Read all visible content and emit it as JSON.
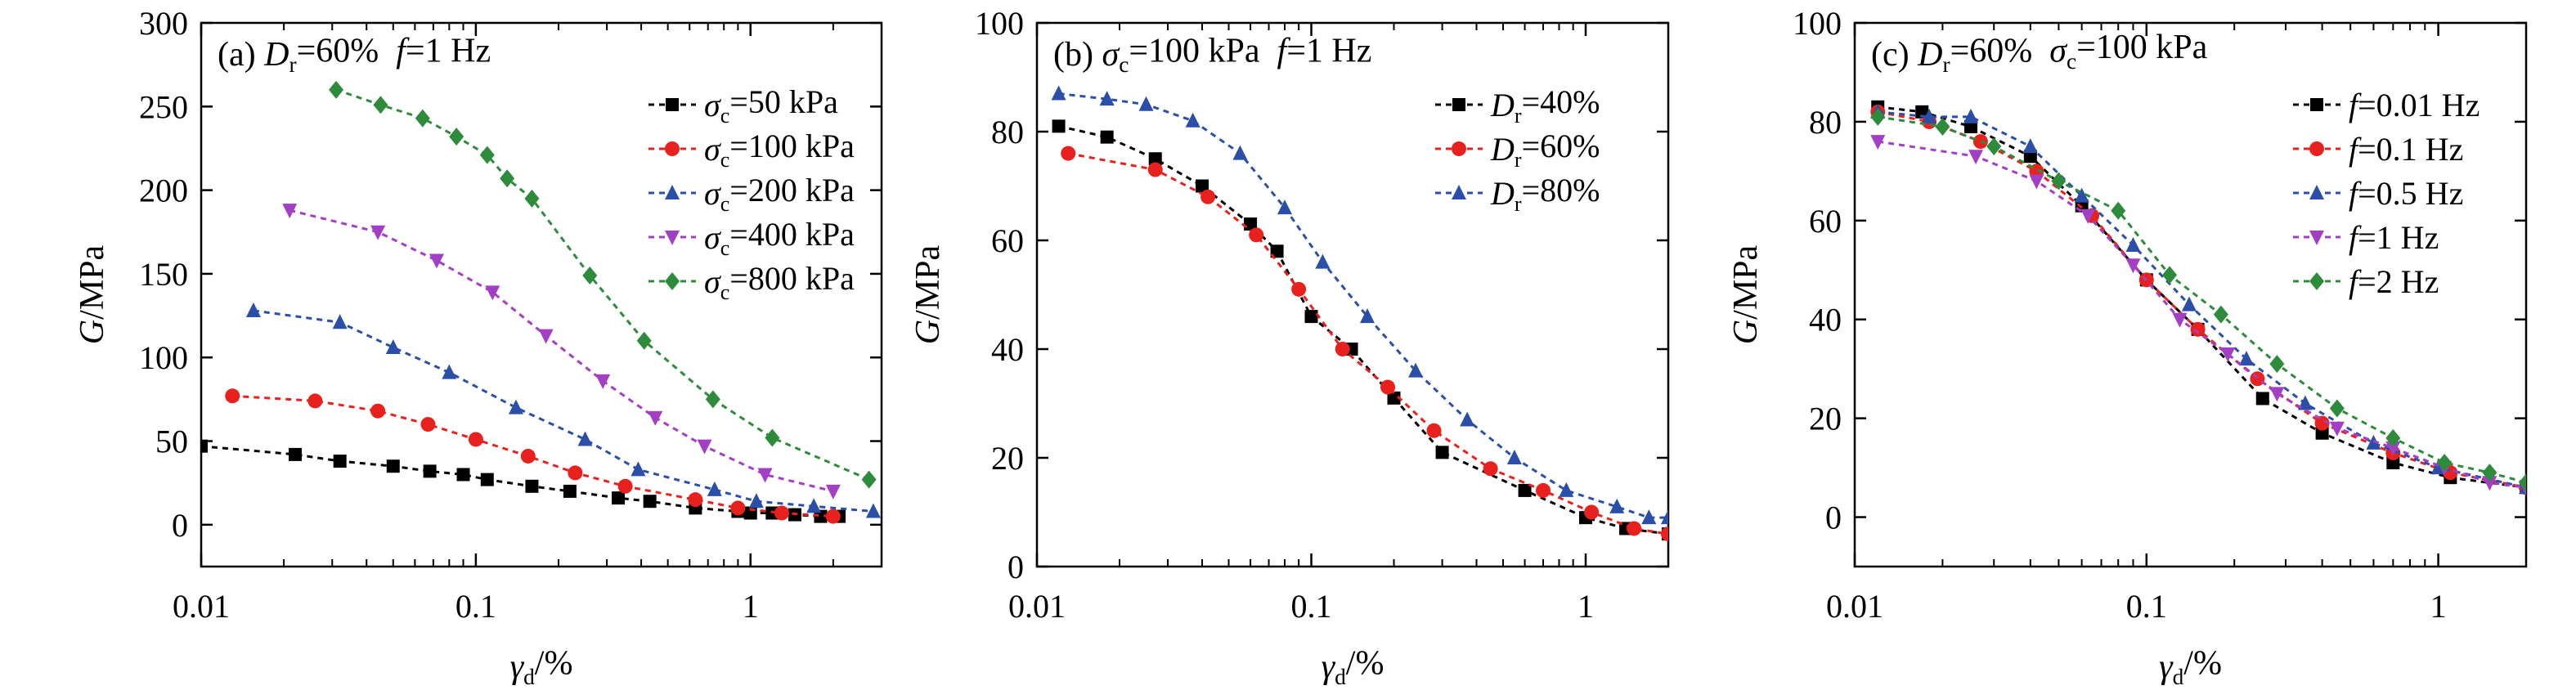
{
  "figure": {
    "panels": [
      "(a)",
      "(b)",
      "(c)"
    ]
  },
  "chart_data": [
    {
      "type": "line",
      "panel": "(a)",
      "title": "(a) Dr=60%  f=1 Hz",
      "xlabel": "γd/%",
      "ylabel": "G/MPa",
      "xscale": "log",
      "xlim": [
        0.01,
        3
      ],
      "ylim": [
        -25,
        300
      ],
      "xticks": [
        "0.01",
        "0.1",
        "1"
      ],
      "yticks": [
        "0",
        "50",
        "100",
        "150",
        "200",
        "250",
        "300"
      ],
      "legend_position": "top-right",
      "series": [
        {
          "name": "σc=50 kPa",
          "color": "#000000",
          "marker": "square",
          "x": [
            0.01,
            0.022,
            0.032,
            0.05,
            0.068,
            0.09,
            0.11,
            0.16,
            0.22,
            0.33,
            0.43,
            0.63,
            0.9,
            1.0,
            1.2,
            1.45,
            1.8,
            2.1
          ],
          "y": [
            47,
            42,
            38,
            35,
            32,
            30,
            27,
            23,
            20,
            16,
            14,
            10,
            8,
            7,
            7,
            6,
            5,
            5
          ]
        },
        {
          "name": "σc=100 kPa",
          "color": "#e8211e",
          "marker": "circle",
          "x": [
            0.013,
            0.026,
            0.044,
            0.067,
            0.1,
            0.155,
            0.23,
            0.35,
            0.63,
            0.9,
            1.3,
            2.0
          ],
          "y": [
            77,
            74,
            68,
            60,
            51,
            41,
            31,
            23,
            15,
            10,
            7,
            5
          ]
        },
        {
          "name": "σc=200 kPa",
          "color": "#2b4fa8",
          "marker": "triangle-up",
          "x": [
            0.0155,
            0.032,
            0.05,
            0.08,
            0.14,
            0.25,
            0.39,
            0.74,
            1.05,
            1.7,
            2.8
          ],
          "y": [
            128,
            121,
            106,
            91,
            70,
            51,
            33,
            21,
            14,
            11,
            8
          ]
        },
        {
          "name": "σc=400 kPa",
          "color": "#a23fc4",
          "marker": "triangle-down",
          "x": [
            0.021,
            0.044,
            0.072,
            0.115,
            0.18,
            0.29,
            0.45,
            0.68,
            1.13,
            2.0
          ],
          "y": [
            188,
            175,
            158,
            139,
            113,
            86,
            64,
            47,
            30,
            20
          ]
        },
        {
          "name": "σc=800 kPa",
          "color": "#2d8b3b",
          "marker": "diamond",
          "x": [
            0.031,
            0.045,
            0.064,
            0.085,
            0.11,
            0.13,
            0.16,
            0.26,
            0.41,
            0.73,
            1.2,
            2.7
          ],
          "y": [
            260,
            251,
            243,
            232,
            221,
            207,
            195,
            149,
            110,
            75,
            52,
            27
          ]
        }
      ]
    },
    {
      "type": "line",
      "panel": "(b)",
      "title": "(b) σc=100 kPa  f=1 Hz",
      "xlabel": "γd/%",
      "ylabel": "G/MPa",
      "xscale": "log",
      "xlim": [
        0.01,
        2
      ],
      "ylim": [
        0,
        100
      ],
      "xticks": [
        "0.01",
        "0.1",
        "1"
      ],
      "yticks": [
        "0",
        "20",
        "40",
        "60",
        "80",
        "100"
      ],
      "legend_position": "top-right",
      "series": [
        {
          "name": "Dr=40%",
          "color": "#000000",
          "marker": "square",
          "x": [
            0.012,
            0.018,
            0.027,
            0.04,
            0.06,
            0.075,
            0.1,
            0.14,
            0.2,
            0.3,
            0.6,
            1.0,
            1.4,
            2.0
          ],
          "y": [
            81,
            79,
            75,
            70,
            63,
            58,
            46,
            40,
            31,
            21,
            14,
            9,
            7,
            6
          ]
        },
        {
          "name": "Dr=60%",
          "color": "#e8211e",
          "marker": "circle",
          "x": [
            0.013,
            0.027,
            0.042,
            0.063,
            0.09,
            0.13,
            0.19,
            0.28,
            0.45,
            0.7,
            1.05,
            1.5,
            2.0
          ],
          "y": [
            76,
            73,
            68,
            61,
            51,
            40,
            33,
            25,
            18,
            14,
            10,
            7,
            6
          ]
        },
        {
          "name": "Dr=80%",
          "color": "#2b4fa8",
          "marker": "triangle-up",
          "x": [
            0.012,
            0.018,
            0.025,
            0.037,
            0.055,
            0.08,
            0.11,
            0.16,
            0.24,
            0.37,
            0.55,
            0.85,
            1.3,
            1.7,
            2.0
          ],
          "y": [
            87,
            86,
            85,
            82,
            76,
            66,
            56,
            46,
            36,
            27,
            20,
            14,
            11,
            9,
            9
          ]
        }
      ]
    },
    {
      "type": "line",
      "panel": "(c)",
      "title": "(c) Dr=60%  σc=100 kPa",
      "xlabel": "γd/%",
      "ylabel": "G/MPa",
      "xscale": "log",
      "xlim": [
        0.01,
        2
      ],
      "ylim": [
        -10,
        100
      ],
      "xticks": [
        "0.01",
        "0.1",
        "1"
      ],
      "yticks": [
        "0",
        "20",
        "40",
        "60",
        "80",
        "100"
      ],
      "legend_position": "top-right",
      "series": [
        {
          "name": "f=0.01 Hz",
          "color": "#000000",
          "marker": "square",
          "x": [
            0.012,
            0.017,
            0.025,
            0.04,
            0.06,
            0.1,
            0.15,
            0.25,
            0.4,
            0.7,
            1.1,
            2.0
          ],
          "y": [
            83,
            82,
            79,
            73,
            63,
            48,
            38,
            24,
            17,
            11,
            8,
            6
          ]
        },
        {
          "name": "f=0.1 Hz",
          "color": "#e8211e",
          "marker": "circle",
          "x": [
            0.012,
            0.018,
            0.027,
            0.042,
            0.065,
            0.1,
            0.15,
            0.24,
            0.4,
            0.7,
            1.1,
            2.0
          ],
          "y": [
            82,
            80,
            76,
            70,
            61,
            48,
            38,
            28,
            19,
            13,
            9,
            6
          ]
        },
        {
          "name": "f=0.5 Hz",
          "color": "#2b4fa8",
          "marker": "triangle-up",
          "x": [
            0.012,
            0.018,
            0.025,
            0.04,
            0.06,
            0.09,
            0.14,
            0.22,
            0.35,
            0.6,
            1.0,
            2.0
          ],
          "y": [
            82,
            81,
            81,
            75,
            65,
            55,
            43,
            32,
            23,
            15,
            10,
            6
          ]
        },
        {
          "name": "f=1 Hz",
          "color": "#a23fc4",
          "marker": "triangle-down",
          "x": [
            0.012,
            0.026,
            0.042,
            0.063,
            0.09,
            0.13,
            0.19,
            0.28,
            0.45,
            0.7,
            1.05,
            1.5,
            2.0
          ],
          "y": [
            76,
            73,
            68,
            61,
            51,
            40,
            33,
            25,
            18,
            14,
            10,
            7,
            6
          ]
        },
        {
          "name": "f=2 Hz",
          "color": "#2d8b3b",
          "marker": "diamond",
          "x": [
            0.012,
            0.02,
            0.03,
            0.05,
            0.08,
            0.12,
            0.18,
            0.28,
            0.45,
            0.7,
            1.05,
            1.5,
            2.0
          ],
          "y": [
            81,
            79,
            75,
            68,
            62,
            49,
            41,
            31,
            22,
            16,
            11,
            9,
            7
          ]
        }
      ]
    }
  ]
}
